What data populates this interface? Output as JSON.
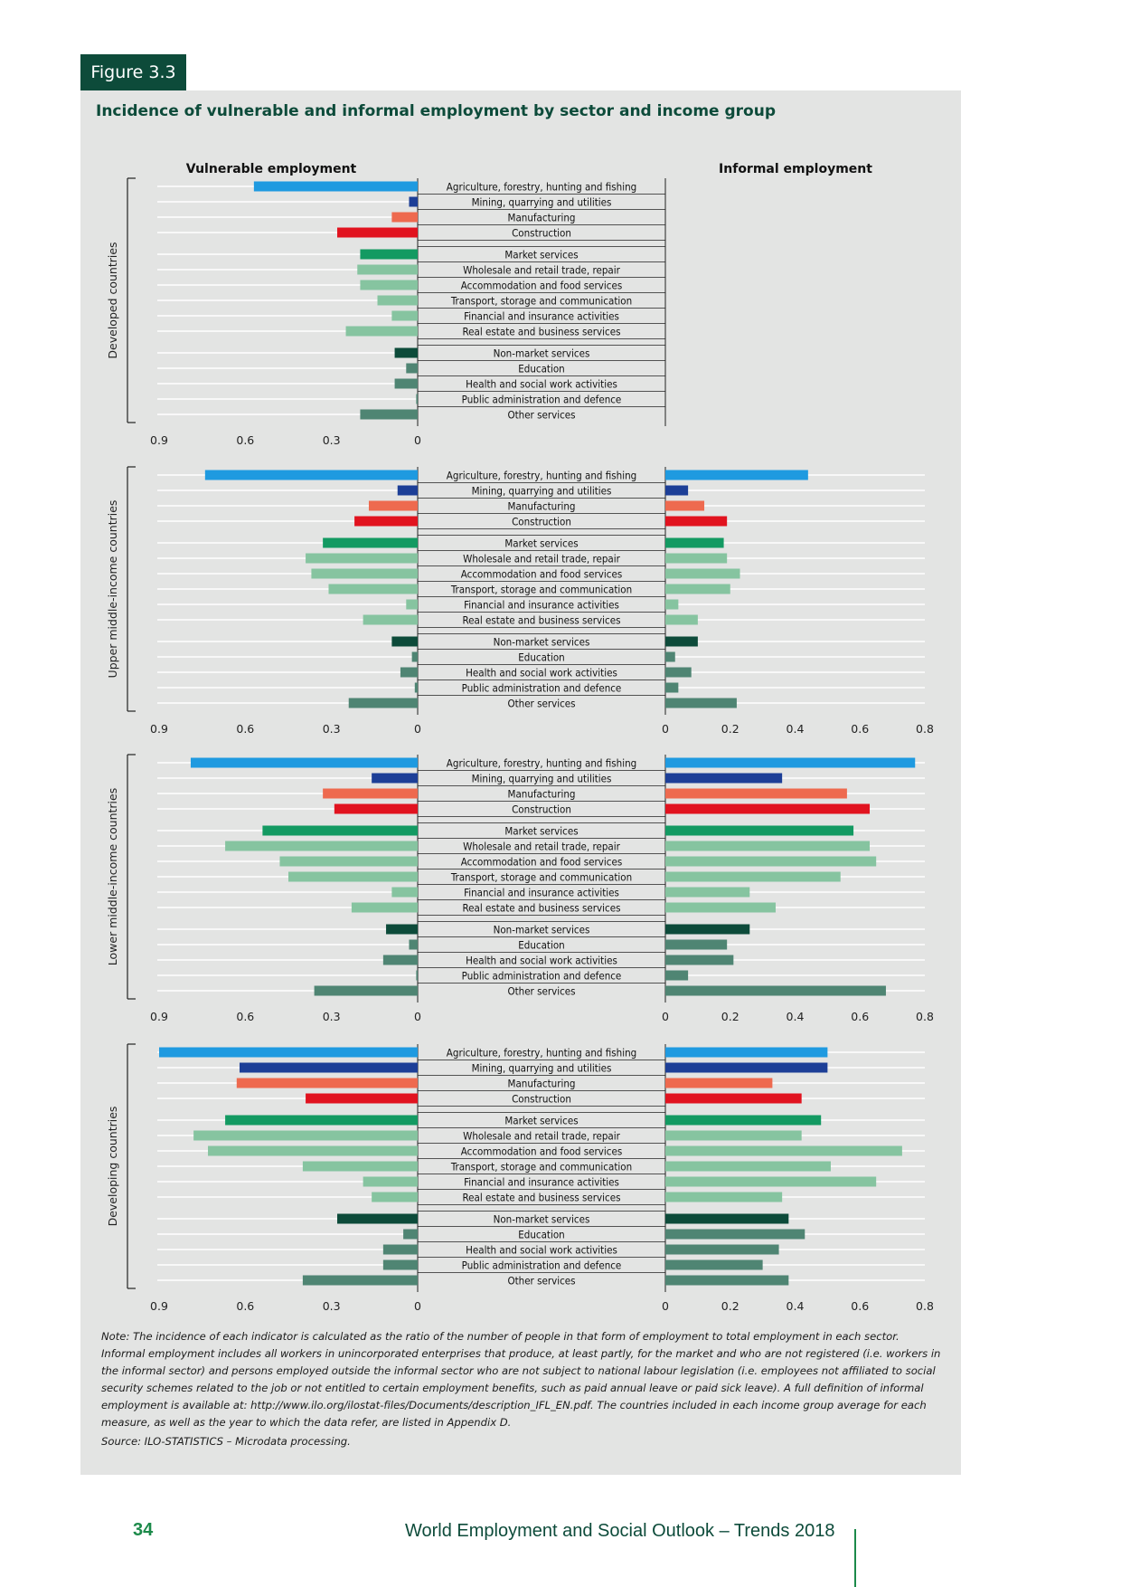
{
  "figure_label": "Figure 3.3",
  "figure_title": "Incidence of vulnerable and informal employment by sector and income group",
  "note": "Note: The incidence of each indicator is calculated as the ratio of the number of people in that form of employment to total employment in each sector. Informal employment includes all workers in unincorporated enterprises that produce, at least partly, for the market and who are not registered (i.e. workers in the informal sector) and persons employed outside the informal sector who are not subject to national labour legislation (i.e. employees not affiliated to social security schemes related to the job or not entitled to certain employment benefits, such as paid annual leave or paid sick leave). A full definition of informal employment is available at: http://www.ilo.org/ilostat-files/Documents/description_IFL_EN.pdf. The countries included in each income group average for each measure, as well as the year to which the data refer, are listed in Appendix D.",
  "source": "Source: ILO-STATISTICS – Microdata processing.",
  "footer": {
    "page_number": "34",
    "publication": "World Employment and Social Outlook – Trends 2018"
  },
  "colors": {
    "agriculture": "#1f9ae0",
    "mining": "#1d3f97",
    "manufacturing": "#ee6a4f",
    "construction": "#e1131f",
    "market": "#139a62",
    "market_sub": "#86c4a0",
    "nonmarket": "#0d4b3a",
    "nonmarket_sub": "#4f8573",
    "grid": "#ffffff",
    "axis": "#222222"
  },
  "chart_data": {
    "type": "bar",
    "orientation": "horizontal-butterfly",
    "left_header": "Vulnerable employment",
    "right_header": "Informal employment",
    "categories": [
      "Agriculture, forestry, hunting and fishing",
      "Mining, quarrying and utilities",
      "Manufacturing",
      "Construction",
      "Market services",
      "Wholesale and retail trade, repair",
      "Accommodation and food services",
      "Transport, storage and communication",
      "Financial and insurance activities",
      "Real estate and business services",
      "Non-market services",
      "Education",
      "Health and social work activities",
      "Public administration and defence",
      "Other services"
    ],
    "category_colors": [
      "agriculture",
      "mining",
      "manufacturing",
      "construction",
      "market",
      "market_sub",
      "market_sub",
      "market_sub",
      "market_sub",
      "market_sub",
      "nonmarket",
      "nonmarket_sub",
      "nonmarket_sub",
      "nonmarket_sub",
      "nonmarket_sub"
    ],
    "left_axis": {
      "ticks": [
        "0.9",
        "0.6",
        "0.3",
        "0"
      ],
      "range": [
        0,
        0.9
      ]
    },
    "right_axis": {
      "ticks": [
        "0",
        "0.2",
        "0.4",
        "0.6",
        "0.8"
      ],
      "range": [
        0,
        0.8
      ]
    },
    "groups": [
      {
        "label": "Developed countries",
        "vulnerable": [
          0.57,
          0.03,
          0.09,
          0.28,
          0.2,
          0.21,
          0.2,
          0.14,
          0.09,
          0.25,
          0.08,
          0.04,
          0.08,
          0.005,
          0.2
        ],
        "informal": null
      },
      {
        "label": "Upper middle-income countries",
        "vulnerable": [
          0.74,
          0.07,
          0.17,
          0.22,
          0.33,
          0.39,
          0.37,
          0.31,
          0.04,
          0.19,
          0.09,
          0.02,
          0.06,
          0.01,
          0.24
        ],
        "informal": [
          0.44,
          0.07,
          0.12,
          0.19,
          0.18,
          0.19,
          0.23,
          0.2,
          0.04,
          0.1,
          0.1,
          0.03,
          0.08,
          0.04,
          0.22
        ]
      },
      {
        "label": "Lower middle-income countries",
        "vulnerable": [
          0.79,
          0.16,
          0.33,
          0.29,
          0.54,
          0.67,
          0.48,
          0.45,
          0.09,
          0.23,
          0.11,
          0.03,
          0.12,
          0.005,
          0.36
        ],
        "informal": [
          0.77,
          0.36,
          0.56,
          0.63,
          0.58,
          0.63,
          0.65,
          0.54,
          0.26,
          0.34,
          0.26,
          0.19,
          0.21,
          0.07,
          0.68
        ]
      },
      {
        "label": "Developing countries",
        "vulnerable": [
          0.9,
          0.62,
          0.63,
          0.39,
          0.67,
          0.78,
          0.73,
          0.4,
          0.19,
          0.16,
          0.28,
          0.05,
          0.12,
          0.12,
          0.4
        ],
        "informal": [
          0.5,
          0.5,
          0.33,
          0.42,
          0.48,
          0.42,
          0.73,
          0.51,
          0.65,
          0.36,
          0.38,
          0.43,
          0.35,
          0.3,
          0.38
        ]
      }
    ]
  }
}
